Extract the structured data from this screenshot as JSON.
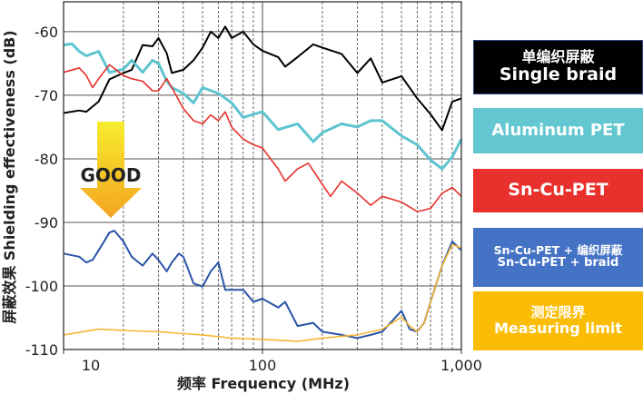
{
  "chart_data": {
    "type": "line",
    "title": "",
    "xlabel": "频率  Frequency (MHz)",
    "ylabel": "屏蔽效果  Shielding effectiveness (dB)",
    "xscale": "log",
    "xlim": [
      10,
      1000
    ],
    "ylim": [
      -110,
      -55.3
    ],
    "grid": true,
    "x_ticks": [
      {
        "value": 10,
        "label": "10"
      },
      {
        "value": 100,
        "label": "100"
      },
      {
        "value": 1000,
        "label": "1,000"
      }
    ],
    "y_ticks": [
      {
        "value": -60,
        "label": "-60"
      },
      {
        "value": -70,
        "label": "-70"
      },
      {
        "value": -80,
        "label": "-80"
      },
      {
        "value": -90,
        "label": "-90"
      },
      {
        "value": -100,
        "label": "-100"
      },
      {
        "value": -110,
        "label": "-110"
      }
    ],
    "legend_placement": "right",
    "annotation": {
      "text": "GOOD",
      "meaning": "arrow pointing down"
    },
    "series": [
      {
        "name": "单编织屏蔽 Single braid",
        "label_cn": "单编织屏蔽",
        "label_en": "Single braid",
        "color": "#000000",
        "x": [
          10,
          12,
          13,
          15,
          17,
          20,
          22,
          25,
          28,
          30,
          33,
          35,
          40,
          45,
          50,
          55,
          60,
          65,
          70,
          80,
          90,
          100,
          120,
          130,
          150,
          180,
          200,
          250,
          300,
          350,
          400,
          500,
          600,
          700,
          800,
          900,
          1000
        ],
        "y": [
          -72.8,
          -72.4,
          -72.6,
          -71,
          -67.5,
          -66.5,
          -66,
          -62.1,
          -62.3,
          -61,
          -63.4,
          -66.5,
          -66,
          -64.5,
          -62.5,
          -60,
          -61,
          -59.2,
          -61,
          -60,
          -62,
          -63,
          -64,
          -65.5,
          -64,
          -62,
          -62.5,
          -63.5,
          -66.5,
          -64.2,
          -68,
          -67,
          -70.5,
          -73,
          -75.5,
          -71,
          -70.5
        ]
      },
      {
        "name": "Aluminum PET",
        "label_en": "Aluminum PET",
        "color": "#5ec4cf",
        "x": [
          10,
          11,
          12,
          13,
          15,
          17,
          20,
          22,
          25,
          28,
          30,
          33,
          35,
          40,
          45,
          50,
          60,
          70,
          80,
          90,
          100,
          120,
          150,
          180,
          200,
          250,
          300,
          350,
          400,
          500,
          600,
          700,
          800,
          900,
          1000
        ],
        "y": [
          -62.1,
          -61.9,
          -63.1,
          -63.8,
          -63.1,
          -66.4,
          -65.9,
          -64.5,
          -66.4,
          -64.5,
          -65,
          -67.8,
          -68.8,
          -69.7,
          -71.2,
          -68.8,
          -69.7,
          -71.2,
          -73.5,
          -73,
          -72.6,
          -75.4,
          -74.5,
          -77.3,
          -75.9,
          -74.5,
          -75,
          -74,
          -74,
          -76.4,
          -77.8,
          -80.2,
          -81.6,
          -79.7,
          -76.9
        ]
      },
      {
        "name": "Sn-Cu-PET",
        "label_en": "Sn-Cu-PET",
        "color": "#e8312a",
        "x": [
          10,
          12,
          13,
          14,
          15,
          17,
          20,
          22,
          25,
          28,
          30,
          33,
          35,
          40,
          45,
          50,
          55,
          60,
          65,
          70,
          80,
          90,
          100,
          120,
          130,
          150,
          170,
          200,
          220,
          250,
          300,
          350,
          400,
          500,
          600,
          700,
          800,
          900,
          1000
        ],
        "y": [
          -66.4,
          -65.7,
          -66.9,
          -68.8,
          -67.4,
          -65.2,
          -66.9,
          -67.4,
          -67.8,
          -69.3,
          -69.3,
          -67.4,
          -68.8,
          -72.1,
          -74,
          -74.5,
          -73.1,
          -74,
          -72.6,
          -75,
          -76.9,
          -77.8,
          -78.3,
          -81.6,
          -83.5,
          -81.6,
          -80.7,
          -84,
          -85.9,
          -83.5,
          -85.4,
          -87.3,
          -85.9,
          -86.8,
          -88.3,
          -87.8,
          -85.4,
          -84.5,
          -85.9
        ]
      },
      {
        "name": "Sn-Cu-PET + 编织屏蔽 / Sn-Cu-PET + braid",
        "label_cn": "Sn-Cu-PET + 编织屏蔽",
        "label_en": "Sn-Cu-PET + braid",
        "color": "#2a54a8",
        "x": [
          10,
          12,
          13,
          14,
          15,
          17,
          18,
          20,
          22,
          25,
          28,
          30,
          33,
          35,
          38,
          40,
          45,
          50,
          55,
          60,
          65,
          70,
          80,
          90,
          100,
          120,
          130,
          150,
          180,
          200,
          250,
          300,
          350,
          400,
          500,
          550,
          600,
          650,
          700,
          800,
          900,
          1000
        ],
        "y": [
          -94.9,
          -95.4,
          -96.3,
          -95.9,
          -94.4,
          -91.6,
          -91.3,
          -93,
          -95.4,
          -96.8,
          -94.9,
          -95.9,
          -97.7,
          -96.3,
          -94.9,
          -95.4,
          -99.6,
          -100.1,
          -97.7,
          -96.3,
          -100.6,
          -100.6,
          -100.6,
          -102.5,
          -102,
          -103.4,
          -102.5,
          -106.3,
          -105.8,
          -107.2,
          -107.7,
          -108.2,
          -107.7,
          -107.2,
          -103.9,
          -106.8,
          -107.2,
          -105.8,
          -102.5,
          -96.8,
          -93,
          -94.4
        ]
      },
      {
        "name": "测定限界 Measuring limit",
        "label_cn": "测定限界",
        "label_en": "Measuring limit",
        "color": "#f7b733",
        "x": [
          10,
          15,
          20,
          30,
          40,
          50,
          70,
          100,
          150,
          200,
          300,
          400,
          500,
          550,
          600,
          650,
          700,
          800,
          900,
          1000
        ],
        "y": [
          -107.7,
          -106.8,
          -107,
          -107.2,
          -107.5,
          -107.7,
          -108.2,
          -108.4,
          -108.7,
          -108.2,
          -107.7,
          -106.8,
          -104.9,
          -106.3,
          -107.2,
          -105.8,
          -102.5,
          -96.8,
          -93.5,
          -94
        ]
      }
    ]
  },
  "legend_colors": {
    "single": "#000000",
    "aluminum": "#63c7d1",
    "sncu": "#e8302c",
    "braid": "#4472c4",
    "limit": "#fbbc04"
  }
}
